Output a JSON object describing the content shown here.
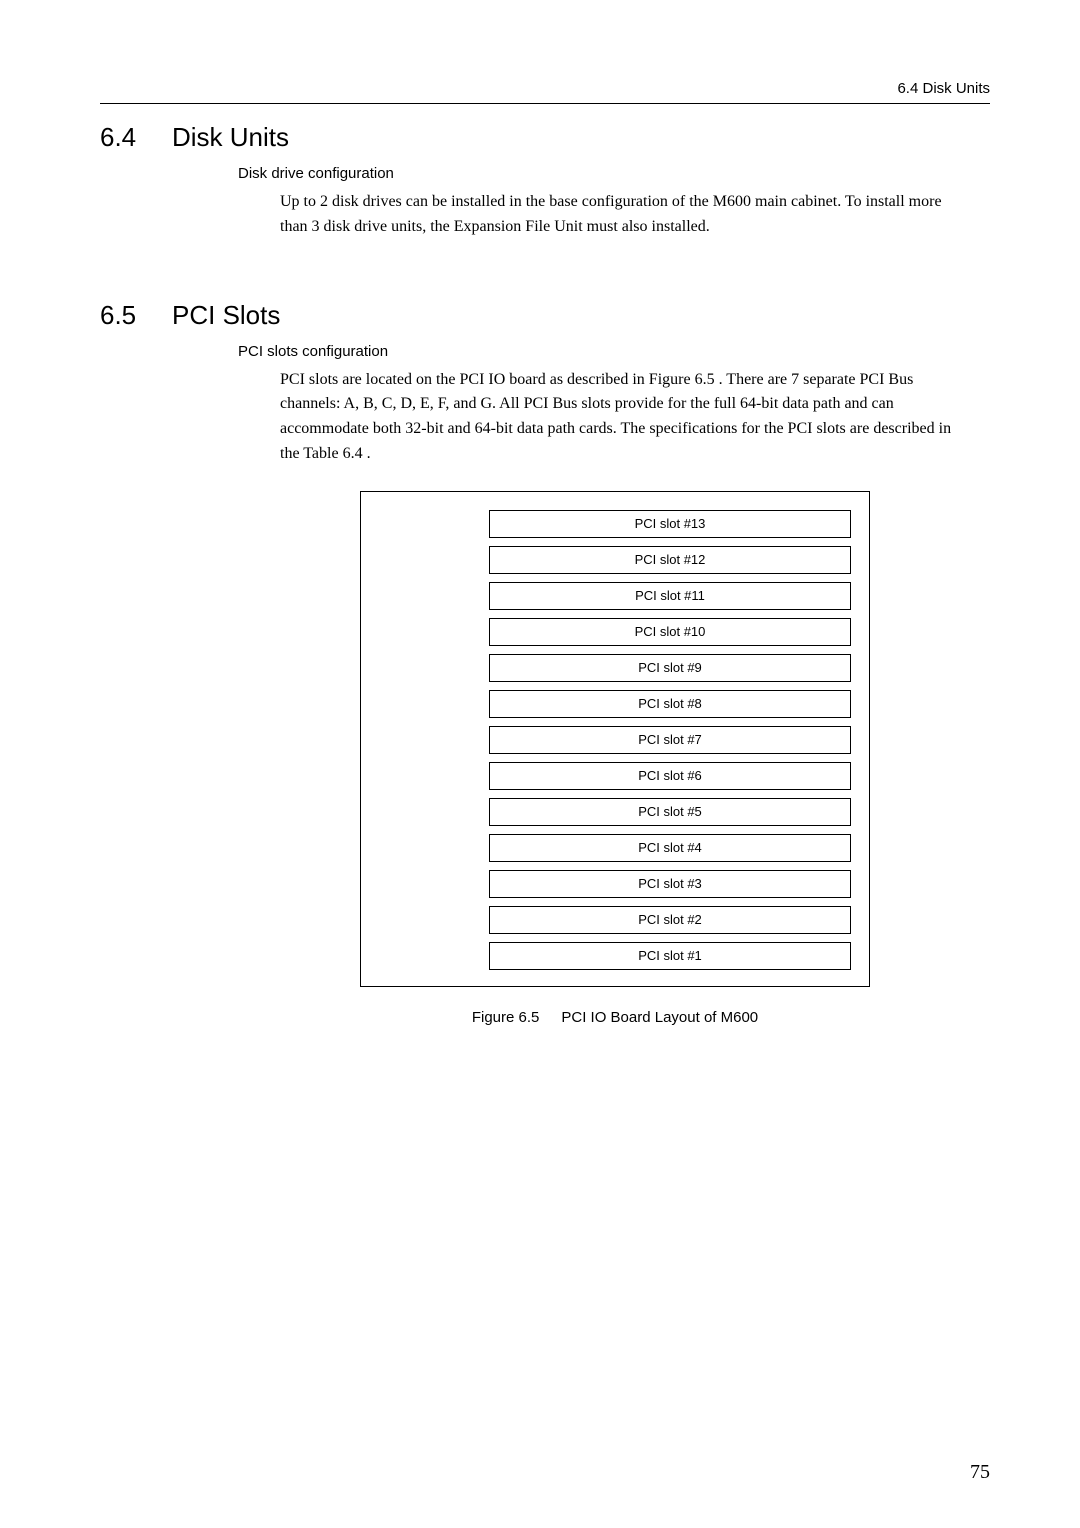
{
  "running_head": "6.4  Disk Units",
  "sections": {
    "s1": {
      "num": "6.4",
      "title": "Disk Units",
      "subheading": "Disk drive configuration",
      "para": "Up to 2 disk drives can be installed in the base configuration of the M600 main cabinet. To install more than 3 disk drive units, the Expansion File Unit must also installed."
    },
    "s2": {
      "num": "6.5",
      "title": "PCI Slots",
      "subheading": "PCI slots configuration",
      "para": "PCI slots are located on the PCI IO board as described in Figure 6.5 . There are 7 separate PCI Bus channels: A, B, C, D, E, F, and G. All PCI Bus slots provide for the full 64-bit data path and can accommodate both 32-bit and 64-bit data path cards. The specifications for the PCI slots are described in the Table 6.4 ."
    }
  },
  "figure": {
    "type": "diagram",
    "slot_labels": [
      "PCI slot #13",
      "PCI slot #12",
      "PCI slot #11",
      "PCI slot #10",
      "PCI slot #9",
      "PCI slot #8",
      "PCI slot #7",
      "PCI slot #6",
      "PCI slot #5",
      "PCI slot #4",
      "PCI slot #3",
      "PCI slot #2",
      "PCI slot #1"
    ],
    "caption_num": "Figure 6.5",
    "caption_text": "PCI IO Board Layout of M600",
    "border_color": "#000000",
    "slot_border_color": "#000000",
    "background_color": "#ffffff",
    "slot_font_size": 13
  },
  "page_number": "75"
}
